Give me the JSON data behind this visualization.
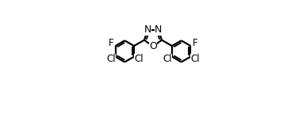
{
  "bg_color": "#ffffff",
  "line_color": "#000000",
  "line_width": 1.6,
  "dbo": 0.022,
  "font_size": 8.5,
  "figsize": [
    3.86,
    1.67
  ],
  "dpi": 100,
  "xlim": [
    0.0,
    1.0
  ],
  "ylim": [
    0.0,
    1.0
  ]
}
